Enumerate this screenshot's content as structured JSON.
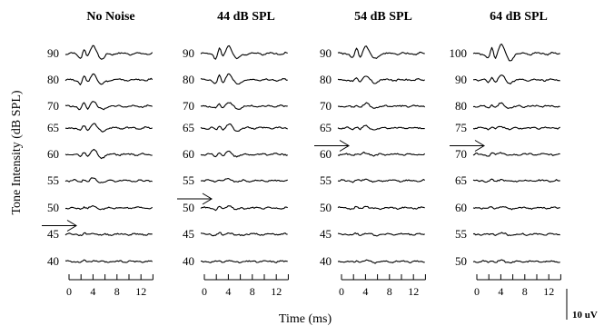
{
  "chart_data": {
    "type": "line",
    "ylabel": "Tone Intensity (dB SPL)",
    "xlabel": "Time (ms)",
    "x_ticks": [
      0,
      4,
      8,
      12
    ],
    "xlim": [
      0,
      14
    ],
    "scale_bar_label": "10 uV",
    "panels": [
      {
        "title": "No Noise",
        "levels": [
          "90",
          "80",
          "70",
          "65",
          "60",
          "55",
          "50",
          "45",
          "40"
        ],
        "threshold_after_index": 6,
        "amplitudes": [
          1.0,
          0.8,
          0.65,
          0.55,
          0.55,
          0.3,
          0.22,
          0.15,
          0.1
        ]
      },
      {
        "title": "44 dB SPL",
        "levels": [
          "90",
          "80",
          "70",
          "65",
          "60",
          "55",
          "50",
          "45",
          "40"
        ],
        "threshold_after_index": 5,
        "amplitudes": [
          1.0,
          0.8,
          0.5,
          0.4,
          0.35,
          0.2,
          0.3,
          0.2,
          0.12
        ]
      },
      {
        "title": "54 dB SPL",
        "levels": [
          "90",
          "80",
          "70",
          "65",
          "60",
          "55",
          "50",
          "45",
          "40"
        ],
        "threshold_after_index": 3,
        "amplitudes": [
          0.95,
          0.5,
          0.3,
          0.25,
          0.2,
          0.2,
          0.2,
          0.15,
          0.12
        ]
      },
      {
        "title": "64 dB SPL",
        "levels": [
          "100",
          "90",
          "80",
          "75",
          "70",
          "65",
          "60",
          "55",
          "50"
        ],
        "threshold_after_index": 3,
        "amplitudes": [
          1.2,
          0.55,
          0.3,
          0.22,
          0.25,
          0.15,
          0.15,
          0.12,
          0.12
        ]
      }
    ]
  }
}
